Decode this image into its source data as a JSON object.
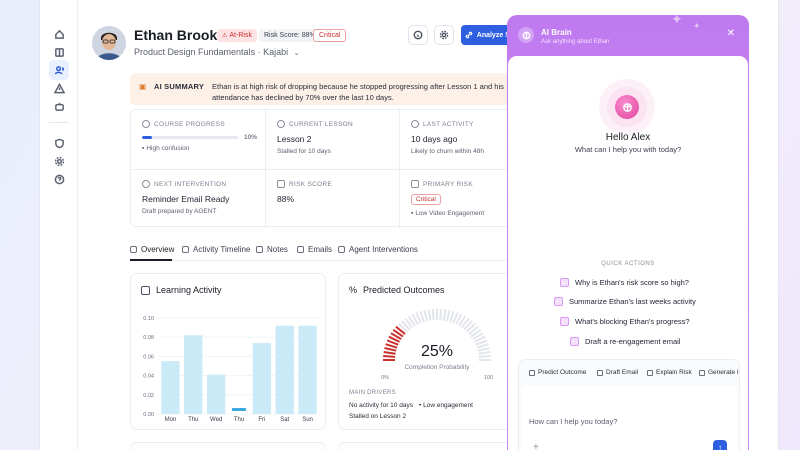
{
  "student": {
    "name": "Ethan Brooks",
    "status_badge": "At-Risk",
    "risk_score_badge": "Risk Score: 88%",
    "severity_badge": "Critical",
    "course": "Product Design Fundamentals · Kajabi",
    "analyze_button": "Analyze Student"
  },
  "summary": {
    "label": "AI SUMMARY",
    "text": "Ethan is at high risk of dropping because he stopped progressing after Lesson 1 and his attendance has declined by 70% over the last 10 days."
  },
  "stats": {
    "course_progress": {
      "label": "COURSE PROGRESS",
      "percent": 10,
      "percent_label": "10%",
      "sub": "High confusion"
    },
    "current_lesson": {
      "label": "CURRENT LESSON",
      "value": "Lesson 2",
      "sub": "Stalled for 10 days"
    },
    "last_activity": {
      "label": "LAST ACTIVITY",
      "value": "10 days ago",
      "sub": "Likely to churn within 48h"
    },
    "next_intervention": {
      "label": "NEXT INTERVENTION",
      "value": "Reminder Email Ready",
      "sub": "Draft prepared by AGENT"
    },
    "risk_score": {
      "label": "RISK SCORE",
      "value": "88%"
    },
    "primary_risk": {
      "label": "PRIMARY RISK",
      "tag": "Critical",
      "sub": "Low Video Engagement"
    }
  },
  "tabs": [
    "Overview",
    "Activity Timeline",
    "Notes",
    "Emails",
    "Agent Interventions"
  ],
  "learning_activity": {
    "title": "Learning Activity"
  },
  "chart_data": {
    "type": "bar",
    "categories": [
      "Mon",
      "Thu",
      "Wed",
      "Thu",
      "Fri",
      "Sat",
      "Sun"
    ],
    "values": [
      0.055,
      0.082,
      0.041,
      0.0,
      0.074,
      0.092,
      0.092
    ],
    "ylim": [
      0,
      0.1
    ],
    "yticks": [
      "0.00",
      "0.02",
      "0.04",
      "0.06",
      "0.08",
      "0.10"
    ],
    "grid": true,
    "color": "#c9eaf6"
  },
  "predicted_outcomes": {
    "title": "Predicted Outcomes",
    "percent": 25,
    "percent_label": "25%",
    "sub": "Completion Probability",
    "min_label": "0%",
    "max_label": "100",
    "drivers_heading": "MAIN DRIVERS",
    "drivers": [
      "No activity for 10 days",
      "Low engagement",
      "Stalled on Lesson 2"
    ]
  },
  "ai_panel": {
    "title": "AI Brain",
    "subtitle": "Ask anything about Ethan",
    "greeting": "Hello Alex",
    "greeting_sub": "What can I help you with today?",
    "quick_actions_heading": "QUICK ACTIONS",
    "quick_actions": [
      "Why is Ethan's risk score so high?",
      "Summarize Ethan's last weeks activity",
      "What's blocking Ethan's progress?",
      "Draft a re-engagement email"
    ],
    "chips": [
      "Predict Outcome",
      "Draft Email",
      "Explain Risk",
      "Generate I"
    ],
    "input_placeholder": "How can I help you today?"
  },
  "colors": {
    "accent": "#2d5fe0",
    "danger": "#c93030",
    "ai_gradient": "#c07af0",
    "bar": "#c9eaf6"
  }
}
